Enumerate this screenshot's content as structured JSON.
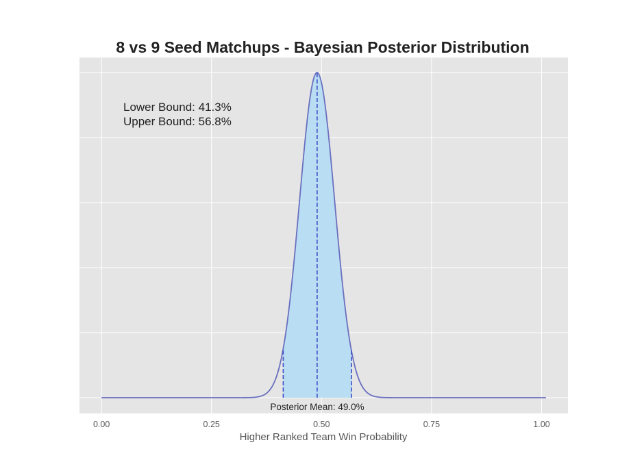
{
  "chart_data": {
    "type": "area",
    "title": "8 vs 9 Seed Matchups - Bayesian Posterior Distribution",
    "xlabel": "Higher Ranked Team Win Probability",
    "ylabel": "",
    "xlim": [
      -0.05,
      1.06
    ],
    "x_ticks": [
      0.0,
      0.25,
      0.5,
      0.75,
      1.0
    ],
    "x_tick_labels": [
      "0.00",
      "0.25",
      "0.50",
      "0.75",
      "1.00"
    ],
    "y_axis_visible": false,
    "grid": true,
    "distribution": {
      "family": "beta",
      "mean": 0.49,
      "sd": 0.0395,
      "x_range": [
        0.0,
        1.01
      ]
    },
    "credible_interval": {
      "lower": 0.413,
      "upper": 0.568
    },
    "annotations": {
      "lower_bound": "Lower Bound:  41.3%",
      "upper_bound": "Upper Bound:  56.8%",
      "posterior_mean": "Posterior Mean:  49.0%"
    },
    "colors": {
      "background": "#e5e5e5",
      "grid": "#ffffff",
      "curve": "#6a6fbf",
      "fill": "#b6dcf2",
      "dashed_lines": "#3d4ec8"
    }
  }
}
